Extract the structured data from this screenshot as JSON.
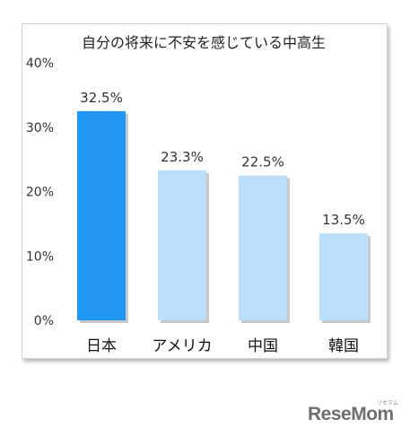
{
  "chart_data": {
    "type": "bar",
    "title": "自分の将来に不安を感じている中高生",
    "categories": [
      "日本",
      "アメリカ",
      "中国",
      "韓国"
    ],
    "values": [
      32.5,
      23.3,
      22.5,
      13.5
    ],
    "value_labels": [
      "32.5%",
      "23.3%",
      "22.5%",
      "13.5%"
    ],
    "ylim": [
      0,
      40
    ],
    "yticks": [
      "0%",
      "10%",
      "20%",
      "30%",
      "40%"
    ],
    "grid": false,
    "colors": {
      "highlight": "#2196f3",
      "default": "#bbdefb",
      "shadow": "#9a9a9a"
    }
  },
  "brand": {
    "name": "ReseMom",
    "kana": "リセマム"
  }
}
